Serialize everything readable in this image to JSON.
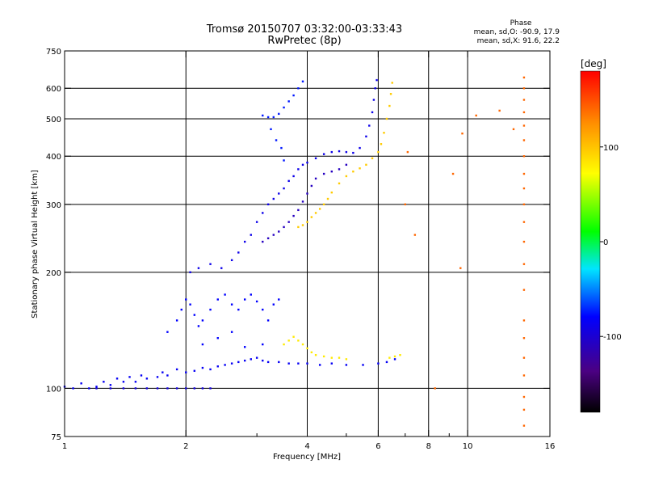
{
  "chart_data": {
    "type": "scatter",
    "title": "Tromsø 20150707 03:32:00-03:33:43",
    "subtitle": "RwPretec (8p)",
    "xlabel": "Frequency [MHz]",
    "ylabel": "Stationary phase Virtual Height [km]",
    "xscale": "log",
    "yscale": "log",
    "xlim": [
      1,
      16
    ],
    "ylim": [
      75,
      750
    ],
    "x_ticks": [
      1,
      2,
      4,
      6,
      8,
      10,
      16
    ],
    "x_tick_labels": [
      "1",
      "2",
      "4",
      "6",
      "8",
      "10",
      "16"
    ],
    "x_grid": [
      2,
      4,
      6,
      8,
      10
    ],
    "x_minor_ticks": [
      3,
      5,
      7,
      9
    ],
    "y_ticks": [
      75,
      100,
      200,
      300,
      400,
      500,
      600,
      750
    ],
    "y_tick_labels": [
      "75",
      "100",
      "200",
      "300",
      "400",
      "500",
      "600",
      "750"
    ],
    "y_grid": [
      100,
      200,
      300,
      400,
      500,
      600
    ],
    "stats": {
      "heading": "Phase",
      "line_o": "mean, sd,O: -90.9, 17.9",
      "line_x": "mean, sd,X:  91.6, 22.2"
    },
    "colorbar": {
      "label": "[deg]",
      "range": [
        -180,
        180
      ],
      "ticks": [
        100,
        0,
        -100
      ],
      "tick_labels": [
        "100",
        "0",
        "-100"
      ]
    },
    "traces": [
      {
        "name": "low F-layer trace (blue)",
        "phase": -85,
        "points": [
          [
            1.0,
            101
          ],
          [
            1.05,
            100
          ],
          [
            1.1,
            103
          ],
          [
            1.15,
            100
          ],
          [
            1.2,
            101
          ],
          [
            1.25,
            104
          ],
          [
            1.3,
            102
          ],
          [
            1.35,
            106
          ],
          [
            1.4,
            104
          ],
          [
            1.45,
            107
          ],
          [
            1.5,
            104
          ],
          [
            1.55,
            108
          ],
          [
            1.6,
            106
          ],
          [
            1.7,
            107
          ],
          [
            1.75,
            110
          ],
          [
            1.8,
            108
          ],
          [
            1.9,
            112
          ],
          [
            2.0,
            110
          ],
          [
            2.1,
            111
          ],
          [
            2.2,
            113
          ],
          [
            2.3,
            112
          ],
          [
            2.4,
            114
          ],
          [
            2.5,
            115
          ],
          [
            2.6,
            116
          ],
          [
            2.7,
            117
          ],
          [
            2.8,
            118
          ],
          [
            2.9,
            119
          ],
          [
            3.0,
            120
          ],
          [
            3.1,
            118
          ],
          [
            3.2,
            117
          ],
          [
            3.4,
            117
          ],
          [
            3.6,
            116
          ],
          [
            3.8,
            116
          ],
          [
            4.0,
            116
          ],
          [
            4.3,
            115
          ],
          [
            4.6,
            116
          ],
          [
            5.0,
            115
          ],
          [
            5.5,
            115
          ],
          [
            6.0,
            116
          ],
          [
            6.3,
            117
          ],
          [
            6.6,
            119
          ]
        ]
      },
      {
        "name": "flat 100 km trace",
        "phase": -95,
        "points": [
          [
            1.2,
            100
          ],
          [
            1.3,
            100
          ],
          [
            1.4,
            100
          ],
          [
            1.5,
            100
          ],
          [
            1.6,
            100
          ],
          [
            1.7,
            100
          ],
          [
            1.8,
            100
          ],
          [
            1.9,
            100
          ],
          [
            2.0,
            100
          ],
          [
            2.1,
            100
          ],
          [
            2.2,
            100
          ],
          [
            2.3,
            100
          ]
        ]
      },
      {
        "name": "mid clusters 140-180 km",
        "phase": -80,
        "points": [
          [
            1.8,
            140
          ],
          [
            1.9,
            150
          ],
          [
            1.95,
            160
          ],
          [
            2.0,
            170
          ],
          [
            2.05,
            165
          ],
          [
            2.1,
            155
          ],
          [
            2.15,
            145
          ],
          [
            2.2,
            150
          ],
          [
            2.3,
            160
          ],
          [
            2.4,
            170
          ],
          [
            2.5,
            175
          ],
          [
            2.6,
            165
          ],
          [
            2.7,
            160
          ],
          [
            2.8,
            170
          ],
          [
            2.9,
            175
          ],
          [
            3.0,
            168
          ],
          [
            3.1,
            160
          ],
          [
            3.2,
            150
          ],
          [
            3.3,
            165
          ],
          [
            3.4,
            170
          ],
          [
            2.2,
            130
          ],
          [
            2.4,
            135
          ],
          [
            2.6,
            140
          ],
          [
            2.8,
            128
          ],
          [
            3.1,
            130
          ]
        ]
      },
      {
        "name": "rising F2 trace",
        "phase": -90,
        "points": [
          [
            2.05,
            200
          ],
          [
            2.15,
            205
          ],
          [
            2.3,
            210
          ],
          [
            2.45,
            205
          ],
          [
            2.6,
            215
          ],
          [
            2.7,
            225
          ],
          [
            2.8,
            240
          ],
          [
            2.9,
            250
          ],
          [
            3.0,
            270
          ],
          [
            3.1,
            285
          ],
          [
            3.2,
            300
          ],
          [
            3.3,
            310
          ],
          [
            3.4,
            320
          ],
          [
            3.5,
            330
          ],
          [
            3.6,
            345
          ],
          [
            3.7,
            355
          ],
          [
            3.8,
            370
          ],
          [
            3.9,
            380
          ],
          [
            4.0,
            385
          ],
          [
            4.2,
            395
          ],
          [
            4.4,
            405
          ],
          [
            4.6,
            410
          ],
          [
            4.8,
            412
          ],
          [
            5.0,
            410
          ],
          [
            5.2,
            408
          ],
          [
            5.4,
            420
          ],
          [
            5.6,
            450
          ],
          [
            5.7,
            480
          ],
          [
            5.8,
            520
          ],
          [
            5.85,
            560
          ],
          [
            5.9,
            600
          ],
          [
            5.95,
            630
          ]
        ]
      },
      {
        "name": "lower cusp trace",
        "phase": -110,
        "points": [
          [
            3.1,
            240
          ],
          [
            3.2,
            245
          ],
          [
            3.3,
            250
          ],
          [
            3.4,
            255
          ],
          [
            3.5,
            262
          ],
          [
            3.6,
            270
          ],
          [
            3.7,
            280
          ],
          [
            3.8,
            290
          ],
          [
            3.9,
            305
          ],
          [
            4.0,
            320
          ],
          [
            4.1,
            335
          ],
          [
            4.2,
            350
          ],
          [
            4.4,
            360
          ],
          [
            4.6,
            365
          ],
          [
            4.8,
            370
          ],
          [
            5.0,
            380
          ]
        ]
      },
      {
        "name": "high echo 500 km",
        "phase": -75,
        "points": [
          [
            3.1,
            510
          ],
          [
            3.2,
            505
          ],
          [
            3.3,
            505
          ],
          [
            3.4,
            515
          ],
          [
            3.5,
            535
          ],
          [
            3.6,
            555
          ],
          [
            3.7,
            575
          ],
          [
            3.8,
            600
          ],
          [
            3.9,
            625
          ],
          [
            3.25,
            470
          ],
          [
            3.35,
            440
          ],
          [
            3.45,
            420
          ],
          [
            3.5,
            390
          ]
        ]
      },
      {
        "name": "X-mode trace",
        "phase": 95,
        "points": [
          [
            3.8,
            262
          ],
          [
            3.9,
            265
          ],
          [
            4.0,
            270
          ],
          [
            4.1,
            278
          ],
          [
            4.2,
            285
          ],
          [
            4.3,
            292
          ],
          [
            4.4,
            300
          ],
          [
            4.5,
            310
          ],
          [
            4.6,
            322
          ],
          [
            4.8,
            340
          ],
          [
            5.0,
            355
          ],
          [
            5.2,
            365
          ],
          [
            5.4,
            372
          ],
          [
            5.6,
            380
          ],
          [
            5.8,
            395
          ],
          [
            6.0,
            410
          ],
          [
            6.1,
            430
          ],
          [
            6.2,
            460
          ],
          [
            6.3,
            500
          ],
          [
            6.4,
            540
          ],
          [
            6.45,
            580
          ],
          [
            6.5,
            620
          ]
        ]
      },
      {
        "name": "X-mode lower trace",
        "phase": 80,
        "points": [
          [
            3.5,
            130
          ],
          [
            3.6,
            133
          ],
          [
            3.7,
            136
          ],
          [
            3.8,
            133
          ],
          [
            3.9,
            130
          ],
          [
            4.0,
            127
          ],
          [
            4.1,
            124
          ],
          [
            4.2,
            122
          ],
          [
            4.4,
            121
          ],
          [
            4.6,
            120
          ],
          [
            4.8,
            120
          ],
          [
            5.0,
            119
          ],
          [
            6.4,
            120
          ],
          [
            6.6,
            121
          ],
          [
            6.8,
            122
          ]
        ]
      },
      {
        "name": "scattered high-frequency dots",
        "phase": 140,
        "points": [
          [
            7.0,
            300
          ],
          [
            7.1,
            410
          ],
          [
            7.4,
            250
          ],
          [
            9.2,
            360
          ],
          [
            9.6,
            205
          ],
          [
            9.7,
            458
          ],
          [
            10.5,
            510
          ],
          [
            12.0,
            525
          ],
          [
            13.0,
            470
          ],
          [
            13.8,
            640
          ],
          [
            13.8,
            600
          ],
          [
            13.8,
            560
          ],
          [
            13.8,
            520
          ],
          [
            13.8,
            480
          ],
          [
            13.8,
            440
          ],
          [
            13.8,
            400
          ],
          [
            13.8,
            360
          ],
          [
            13.8,
            330
          ],
          [
            13.8,
            300
          ],
          [
            13.8,
            270
          ],
          [
            13.8,
            240
          ],
          [
            13.8,
            210
          ],
          [
            13.8,
            180
          ],
          [
            13.8,
            150
          ],
          [
            13.8,
            135
          ],
          [
            13.8,
            120
          ],
          [
            13.8,
            108
          ],
          [
            13.8,
            95
          ],
          [
            13.8,
            88
          ],
          [
            13.8,
            80
          ],
          [
            8.3,
            100
          ]
        ]
      }
    ]
  }
}
